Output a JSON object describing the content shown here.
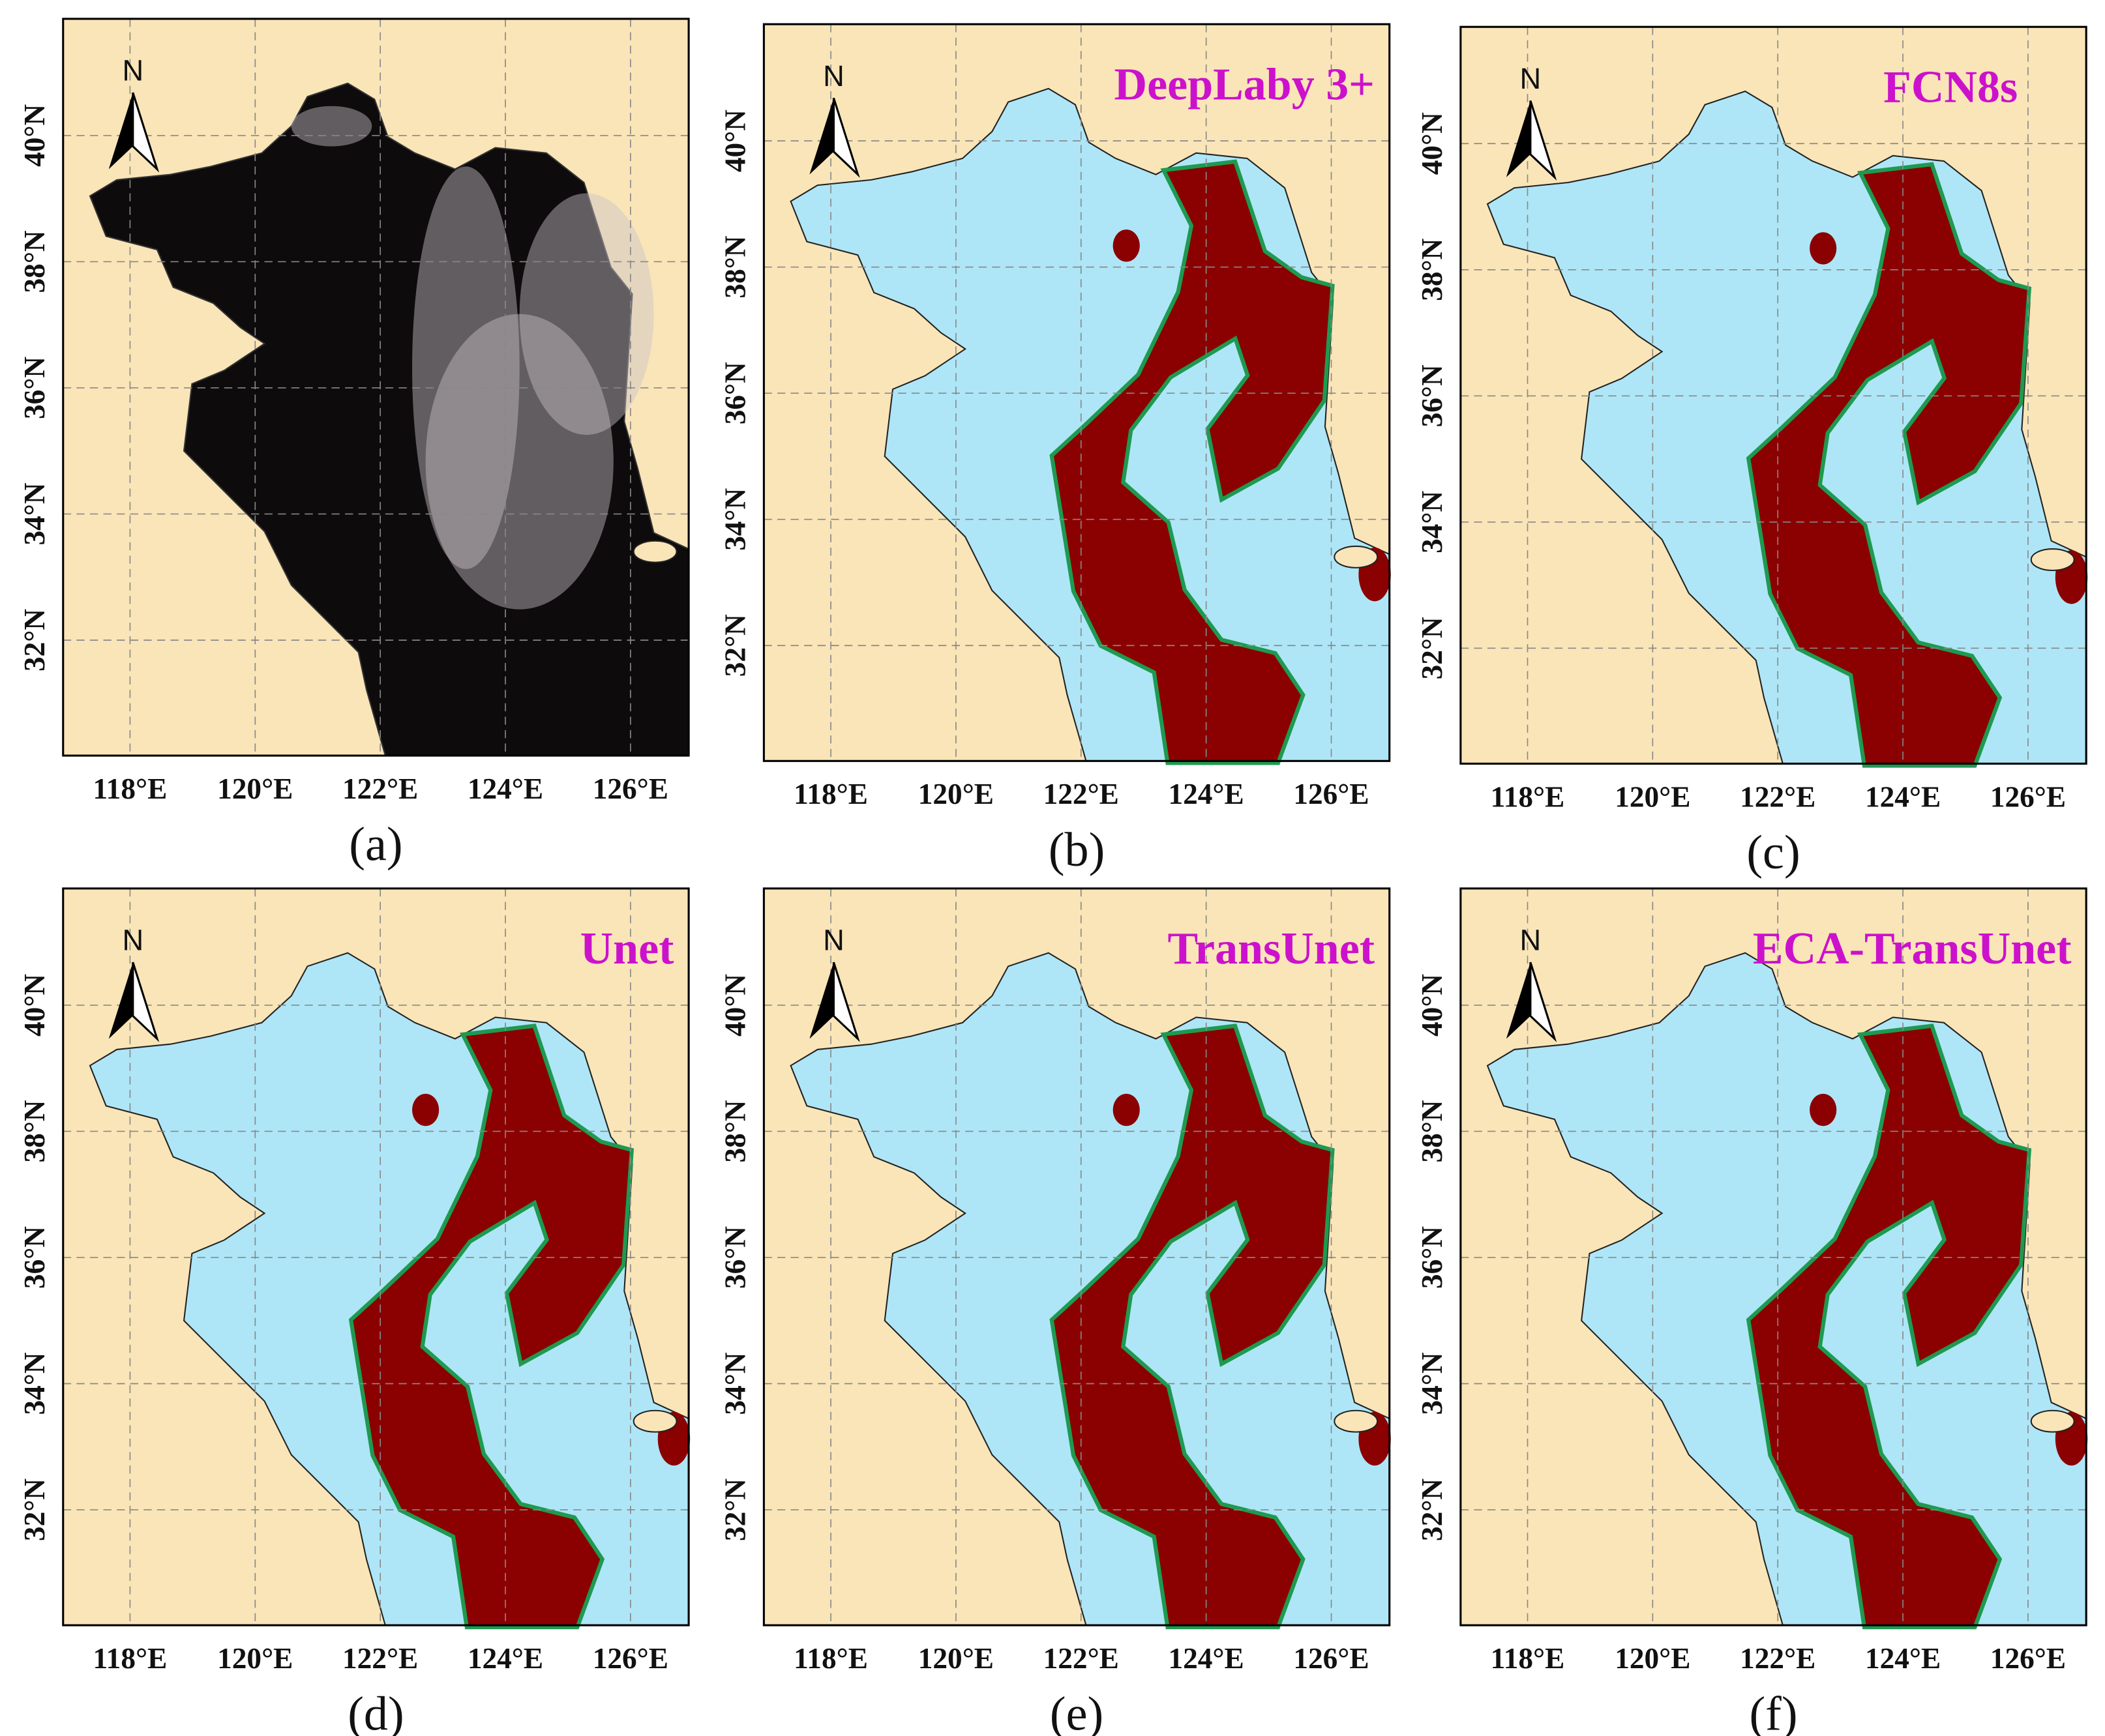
{
  "map": {
    "lon_range": [
      116.93,
      126.93
    ],
    "lat_range": [
      30.17,
      41.85
    ],
    "lon_ticks": [
      {
        "value": 118,
        "label": "118°E"
      },
      {
        "value": 120,
        "label": "120°E"
      },
      {
        "value": 122,
        "label": "122°E"
      },
      {
        "value": 124,
        "label": "124°E"
      },
      {
        "value": 126,
        "label": "126°E"
      }
    ],
    "lat_ticks": [
      {
        "value": 32,
        "label": "32°N"
      },
      {
        "value": 34,
        "label": "34°N"
      },
      {
        "value": 36,
        "label": "36°N"
      },
      {
        "value": 38,
        "label": "38°N"
      },
      {
        "value": 40,
        "label": "40°N"
      }
    ],
    "north_label": "N"
  },
  "panels": [
    {
      "caption": "(a)"
    },
    {
      "caption": "(b)",
      "title": "DeepLaby 3+"
    },
    {
      "caption": "(c)",
      "title": "FCN8s"
    },
    {
      "caption": "(d)",
      "title": "Unet"
    },
    {
      "caption": "(e)",
      "title": "TransUnet"
    },
    {
      "caption": "(f)",
      "title": "ECA-TransUnet"
    }
  ]
}
